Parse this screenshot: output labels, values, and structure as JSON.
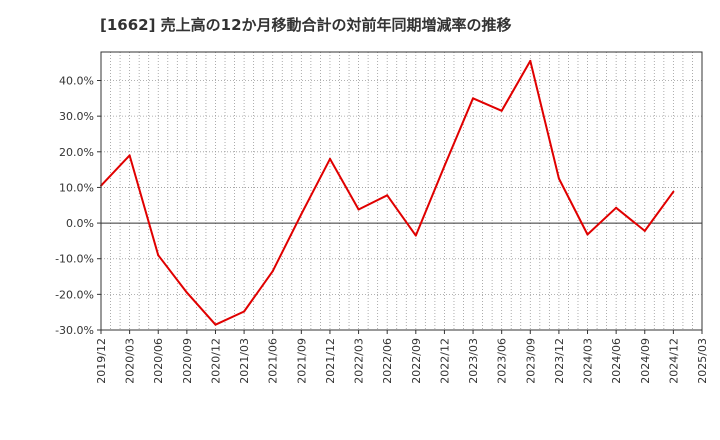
{
  "chart_data": {
    "type": "line",
    "title": "[1662]  売上高の12か月移動合計の対前年同期増減率の推移",
    "xlabel": "",
    "ylabel": "",
    "x_tick_labels": [
      "2019/12",
      "2020/03",
      "2020/06",
      "2020/09",
      "2020/12",
      "2021/03",
      "2021/06",
      "2021/09",
      "2021/12",
      "2022/03",
      "2022/06",
      "2022/09",
      "2022/12",
      "2023/03",
      "2023/06",
      "2023/09",
      "2023/12",
      "2024/03",
      "2024/06",
      "2024/09",
      "2024/12",
      "2025/03"
    ],
    "y_tick_labels": [
      "40.0%",
      "30.0%",
      "20.0%",
      "10.0%",
      "0.0%",
      "-10.0%",
      "-20.0%",
      "-30.0%"
    ],
    "y_ticks": [
      40,
      30,
      20,
      10,
      0,
      -10,
      -20,
      -30
    ],
    "ylim": [
      -30,
      48
    ],
    "grid": true,
    "line_color": "#e00000",
    "series": [
      {
        "name": "増減率",
        "x": [
          "2019/12",
          "2020/03",
          "2020/06",
          "2020/09",
          "2020/12",
          "2021/03",
          "2021/06",
          "2021/09",
          "2021/12",
          "2022/03",
          "2022/06",
          "2022/09",
          "2022/12",
          "2023/03",
          "2023/06",
          "2023/09",
          "2023/12",
          "2024/03",
          "2024/06",
          "2024/09",
          "2024/12"
        ],
        "values": [
          10.5,
          19.0,
          -9.0,
          -19.5,
          -28.5,
          -24.8,
          -13.5,
          2.5,
          18.0,
          3.8,
          7.8,
          -3.5,
          16.0,
          35.0,
          31.5,
          45.5,
          12.5,
          -3.2,
          4.3,
          -2.2,
          8.8
        ]
      }
    ]
  }
}
